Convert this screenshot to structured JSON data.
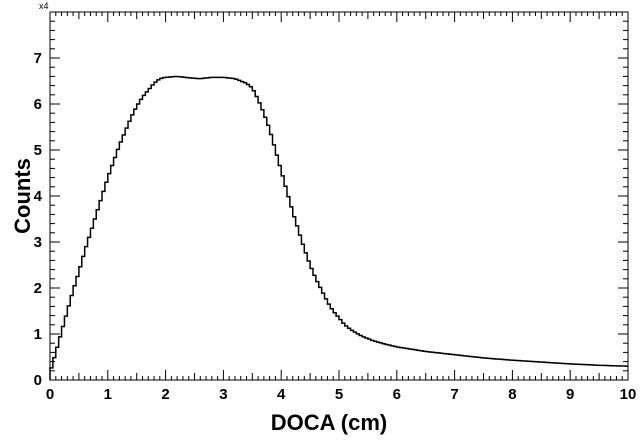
{
  "chart_data": {
    "type": "line",
    "style": "step-histogram",
    "xlabel": "DOCA (cm)",
    "ylabel": "Counts",
    "y_multiplier_label": "x4",
    "xlim": [
      0,
      10
    ],
    "ylim": [
      0,
      8
    ],
    "x_ticks": [
      0,
      1,
      2,
      3,
      4,
      5,
      6,
      7,
      8,
      9,
      10
    ],
    "y_ticks": [
      0,
      1,
      2,
      3,
      4,
      5,
      6,
      7
    ],
    "line_color": "#000000",
    "grid": false,
    "series": [
      {
        "x": [
          0.0,
          0.1,
          0.2,
          0.3,
          0.4,
          0.5,
          0.6,
          0.7,
          0.8,
          0.9,
          1.0,
          1.1,
          1.2,
          1.3,
          1.4,
          1.5,
          1.6,
          1.7,
          1.8,
          1.9,
          2.0,
          2.2,
          2.4,
          2.6,
          2.8,
          3.0,
          3.2,
          3.4,
          3.5,
          3.6,
          3.7,
          3.8,
          3.9,
          4.0,
          4.1,
          4.2,
          4.3,
          4.4,
          4.5,
          4.6,
          4.7,
          4.8,
          4.9,
          5.0,
          5.1,
          5.2,
          5.3,
          5.4,
          5.5,
          5.6,
          5.8,
          6.0,
          6.5,
          7.0,
          7.5,
          8.0,
          8.5,
          9.0,
          9.5,
          10.0
        ],
        "y": [
          0.15,
          0.6,
          1.05,
          1.5,
          1.95,
          2.35,
          2.8,
          3.2,
          3.6,
          4.0,
          4.4,
          4.75,
          5.1,
          5.4,
          5.7,
          5.95,
          6.15,
          6.3,
          6.45,
          6.55,
          6.58,
          6.6,
          6.57,
          6.55,
          6.58,
          6.58,
          6.55,
          6.45,
          6.35,
          6.1,
          5.8,
          5.45,
          5.0,
          4.55,
          4.1,
          3.65,
          3.25,
          2.85,
          2.5,
          2.2,
          1.95,
          1.7,
          1.5,
          1.35,
          1.2,
          1.1,
          1.02,
          0.95,
          0.9,
          0.85,
          0.78,
          0.72,
          0.62,
          0.55,
          0.48,
          0.43,
          0.39,
          0.35,
          0.32,
          0.3
        ]
      }
    ]
  }
}
